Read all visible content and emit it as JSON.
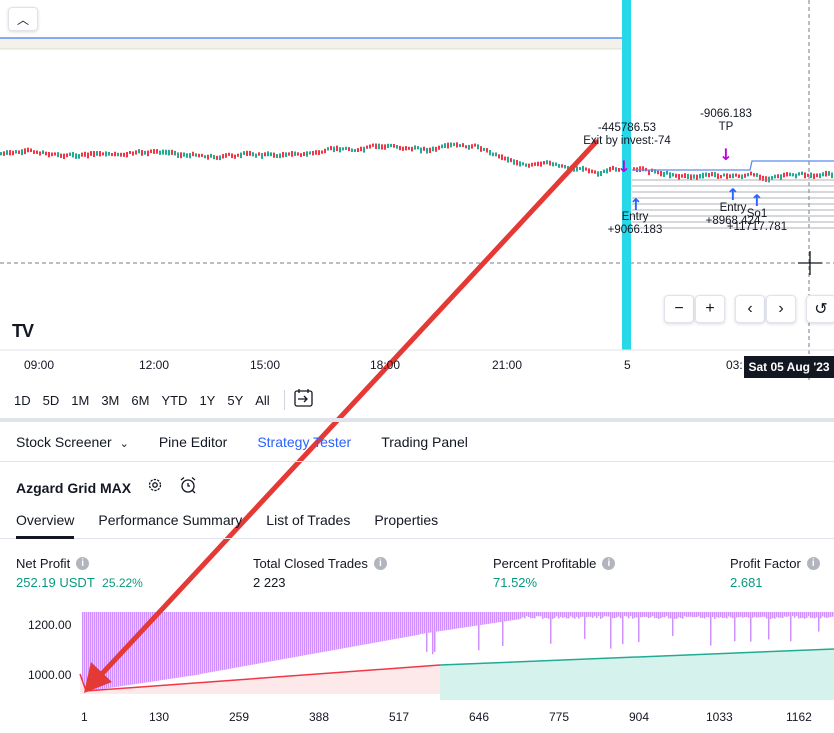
{
  "chart": {
    "time_labels": [
      "09:00",
      "12:00",
      "15:00",
      "18:00",
      "21:00",
      "5",
      "03:"
    ],
    "date_badge": "Sat 05 Aug '23",
    "annotations": {
      "exit_value": "-445786.53",
      "exit_label": "Exit by invest:-74",
      "tp_value": "-9066.183",
      "tp_label": "TP",
      "entry1_label": "Entry",
      "entry1_value": "+9066.183",
      "entry2_label": "Entry",
      "entry2_value": "+8968.424",
      "so1_label": "So1",
      "so1_value": "+11717.781"
    },
    "collapse_icon": "chevron-up-icon",
    "logo": "TV",
    "controls": [
      "−",
      "+",
      "‹",
      "›",
      "↺"
    ]
  },
  "range_buttons": [
    "1D",
    "5D",
    "1M",
    "3M",
    "6M",
    "YTD",
    "1Y",
    "5Y",
    "All"
  ],
  "bottom_tabs": [
    {
      "label": "Stock Screener",
      "active": false
    },
    {
      "label": "Pine Editor",
      "active": false
    },
    {
      "label": "Strategy Tester",
      "active": true
    },
    {
      "label": "Trading Panel",
      "active": false
    }
  ],
  "strategy": {
    "name": "Azgard Grid MAX"
  },
  "sub_tabs": [
    "Overview",
    "Performance Summary",
    "List of Trades",
    "Properties"
  ],
  "metrics": [
    {
      "label": "Net Profit",
      "value": "252.19 USDT",
      "extra": "25.22%"
    },
    {
      "label": "Total Closed Trades",
      "value": "2 223"
    },
    {
      "label": "Percent Profitable",
      "value": "71.52%"
    },
    {
      "label": "Profit Factor",
      "value": "2.681"
    }
  ],
  "chart_data": {
    "type": "area",
    "y_ticks": [
      "1200.00",
      "1000.00"
    ],
    "x_ticks": [
      "1",
      "130",
      "259",
      "388",
      "517",
      "646",
      "775",
      "904",
      "1033",
      "1162"
    ],
    "colors": {
      "drawdown": "#c77dff",
      "equity_loss": "#f23645",
      "equity_gain": "#22ab94",
      "accent": "#2962ff",
      "highlight": "#26d8e8",
      "arrow": "#e53935"
    }
  }
}
